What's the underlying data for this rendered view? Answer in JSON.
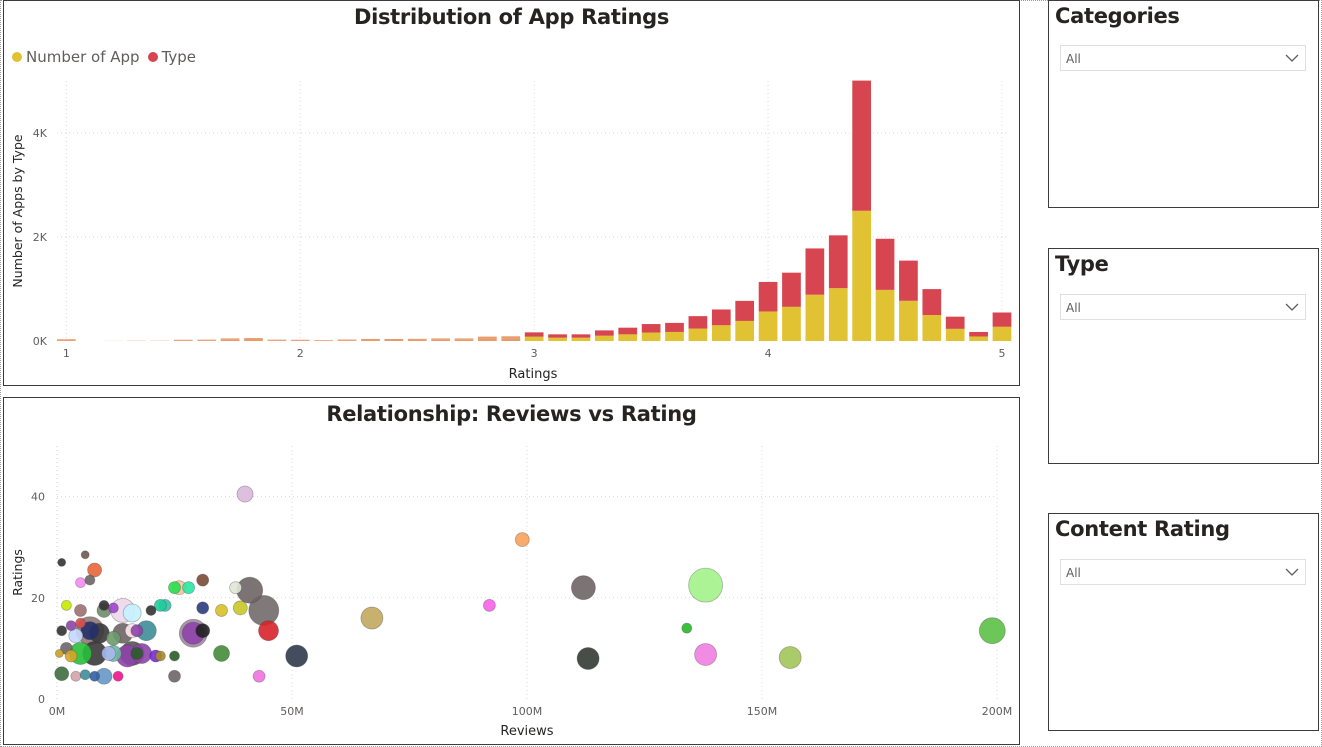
{
  "bar_panel": {
    "title": "Distribution of App Ratings",
    "legend": [
      {
        "label": "Number of App",
        "color": "#e0c232"
      },
      {
        "label": "Type",
        "color": "#d64550"
      }
    ]
  },
  "scatter_panel": {
    "title": "Relationship: Reviews vs Rating"
  },
  "slicers": [
    {
      "title": "Categories",
      "value": "All",
      "icon": "chevron-down-icon"
    },
    {
      "title": "Type",
      "value": "All",
      "icon": "chevron-down-icon"
    },
    {
      "title": "Content Rating",
      "value": "All",
      "icon": "chevron-down-icon"
    }
  ],
  "chart_data": [
    {
      "type": "bar",
      "stacked": true,
      "title": "Distribution of App Ratings",
      "xlabel": "Ratings",
      "ylabel": "Number of Apps by Type",
      "x": [
        1.0,
        1.2,
        1.3,
        1.4,
        1.5,
        1.6,
        1.7,
        1.8,
        1.9,
        2.0,
        2.1,
        2.2,
        2.3,
        2.4,
        2.5,
        2.6,
        2.7,
        2.8,
        2.9,
        3.0,
        3.1,
        3.2,
        3.3,
        3.4,
        3.5,
        3.6,
        3.7,
        3.8,
        3.9,
        4.0,
        4.1,
        4.2,
        4.3,
        4.4,
        4.5,
        4.6,
        4.7,
        4.8,
        4.9,
        5.0
      ],
      "series": [
        {
          "name": "Number of App",
          "color": "#e0c232",
          "values": [
            17,
            1,
            3,
            3,
            12,
            13,
            25,
            28,
            13,
            12,
            8,
            14,
            20,
            19,
            21,
            25,
            25,
            42,
            45,
            83,
            64,
            64,
            102,
            128,
            163,
            174,
            239,
            303,
            386,
            568,
            657,
            890,
            1016,
            2504,
            983,
            773,
            499,
            234,
            87,
            274
          ]
        },
        {
          "name": "Type",
          "color": "#d64550",
          "values": [
            17,
            1,
            3,
            3,
            12,
            13,
            25,
            28,
            13,
            12,
            8,
            14,
            20,
            19,
            21,
            25,
            25,
            42,
            45,
            83,
            64,
            64,
            102,
            128,
            163,
            174,
            239,
            303,
            386,
            568,
            657,
            890,
            1016,
            2504,
            983,
            773,
            499,
            234,
            87,
            274
          ]
        }
      ],
      "xlim": [
        0.96,
        5.03
      ],
      "xticks": [
        "1",
        "2",
        "3",
        "4",
        "5"
      ],
      "ylim": [
        0,
        5000
      ],
      "yticks": [
        "0K",
        "2K",
        "4K"
      ],
      "grid": true,
      "legend_position": "top-left"
    },
    {
      "type": "scatter",
      "title": "Relationship: Reviews vs Rating",
      "xlabel": "Reviews",
      "ylabel": "Ratings",
      "xlim": [
        0,
        200
      ],
      "ylim": [
        0,
        50
      ],
      "xticks": [
        "0M",
        "50M",
        "100M",
        "150M",
        "200M"
      ],
      "yticks": [
        "0",
        "20",
        "40"
      ],
      "grid": true,
      "points": [
        {
          "x": 40,
          "y": 40.5,
          "r": 8,
          "color": "#dcb8dc"
        },
        {
          "x": 99,
          "y": 31.5,
          "r": 7,
          "color": "#f7a25c"
        },
        {
          "x": 112,
          "y": 22,
          "r": 12,
          "color": "#6e6466"
        },
        {
          "x": 138,
          "y": 22.5,
          "r": 17,
          "color": "#a3f28a"
        },
        {
          "x": 92,
          "y": 18.5,
          "r": 6,
          "color": "#f760e8"
        },
        {
          "x": 67,
          "y": 16,
          "r": 11,
          "color": "#c2a85e"
        },
        {
          "x": 134,
          "y": 14,
          "r": 5,
          "color": "#28b828"
        },
        {
          "x": 199,
          "y": 13.5,
          "r": 13,
          "color": "#5cc046"
        },
        {
          "x": 113,
          "y": 8,
          "r": 11,
          "color": "#333a33"
        },
        {
          "x": 138,
          "y": 8.8,
          "r": 11,
          "color": "#f07ee0"
        },
        {
          "x": 156,
          "y": 8.2,
          "r": 11,
          "color": "#a2c45a"
        },
        {
          "x": 51,
          "y": 8.5,
          "r": 11,
          "color": "#2f3a4c"
        },
        {
          "x": 45,
          "y": 13.5,
          "r": 10,
          "color": "#d7242a"
        },
        {
          "x": 35,
          "y": 9,
          "r": 8,
          "color": "#418c3a"
        },
        {
          "x": 43,
          "y": 4.5,
          "r": 6,
          "color": "#f072e0"
        },
        {
          "x": 44,
          "y": 17.5,
          "r": 15,
          "color": "#716a6a"
        },
        {
          "x": 41,
          "y": 21.5,
          "r": 13,
          "color": "#6e6466"
        },
        {
          "x": 39,
          "y": 18,
          "r": 7,
          "color": "#c7c728"
        },
        {
          "x": 38,
          "y": 22,
          "r": 6,
          "color": "#e0e8d8"
        },
        {
          "x": 35,
          "y": 17.5,
          "r": 6,
          "color": "#d7c028"
        },
        {
          "x": 31,
          "y": 23.5,
          "r": 6,
          "color": "#7a4a36"
        },
        {
          "x": 31,
          "y": 13.5,
          "r": 7,
          "color": "#222222"
        },
        {
          "x": 29,
          "y": 13,
          "r": 14,
          "color": "#a088a0"
        },
        {
          "x": 29,
          "y": 13,
          "r": 11,
          "color": "#8e42aa"
        },
        {
          "x": 31,
          "y": 18,
          "r": 6,
          "color": "#2a3c80"
        },
        {
          "x": 28,
          "y": 22,
          "r": 6,
          "color": "#28e8a0"
        },
        {
          "x": 26,
          "y": 22,
          "r": 7,
          "color": "#eec8a0"
        },
        {
          "x": 25,
          "y": 22,
          "r": 6,
          "color": "#28e04e"
        },
        {
          "x": 25,
          "y": 4.5,
          "r": 6,
          "color": "#6e6466"
        },
        {
          "x": 25,
          "y": 8.5,
          "r": 5,
          "color": "#2a5c2a"
        },
        {
          "x": 23,
          "y": 18.5,
          "r": 6,
          "color": "#3ac0a8"
        },
        {
          "x": 22,
          "y": 18.5,
          "r": 6,
          "color": "#1ecc9a"
        },
        {
          "x": 20,
          "y": 17.5,
          "r": 5,
          "color": "#333333"
        },
        {
          "x": 22,
          "y": 8.5,
          "r": 5,
          "color": "#a78b28"
        },
        {
          "x": 21,
          "y": 8.5,
          "r": 6,
          "color": "#7828d8"
        },
        {
          "x": 19,
          "y": 13.5,
          "r": 10,
          "color": "#3e8e98"
        },
        {
          "x": 16,
          "y": 13.5,
          "r": 7,
          "color": "#ffe8ea"
        },
        {
          "x": 16,
          "y": 17,
          "r": 9,
          "color": "#c4f2ff"
        },
        {
          "x": 16,
          "y": 9,
          "r": 12,
          "color": "#545454"
        },
        {
          "x": 14,
          "y": 13,
          "r": 10,
          "color": "#6e6466"
        },
        {
          "x": 14,
          "y": 17.5,
          "r": 12,
          "color": "#ecd8ec"
        },
        {
          "x": 15,
          "y": 8.5,
          "r": 11,
          "color": "#8e42aa"
        },
        {
          "x": 13,
          "y": 4.5,
          "r": 5,
          "color": "#f0148c"
        },
        {
          "x": 12,
          "y": 12,
          "r": 7,
          "color": "#6d9a6d"
        },
        {
          "x": 11,
          "y": 9,
          "r": 7,
          "color": "#a8b8ee"
        },
        {
          "x": 10,
          "y": 17.5,
          "r": 7,
          "color": "#6e8c6e"
        },
        {
          "x": 10,
          "y": 18.5,
          "r": 5,
          "color": "#333333"
        },
        {
          "x": 12,
          "y": 18,
          "r": 5,
          "color": "#9e42cc"
        },
        {
          "x": 10,
          "y": 4.5,
          "r": 8,
          "color": "#6698c8"
        },
        {
          "x": 8,
          "y": 4.5,
          "r": 5,
          "color": "#3260a0"
        },
        {
          "x": 8,
          "y": 9,
          "r": 12,
          "color": "#3a3a3a"
        },
        {
          "x": 7,
          "y": 13.5,
          "r": 9,
          "color": "#26306a"
        },
        {
          "x": 7,
          "y": 13.5,
          "r": 14,
          "color": "#917878"
        },
        {
          "x": 5,
          "y": 9,
          "r": 11,
          "color": "#28c038"
        },
        {
          "x": 4,
          "y": 12.5,
          "r": 7,
          "color": "#c4d8ff"
        },
        {
          "x": 5,
          "y": 17.5,
          "r": 6,
          "color": "#9c7070"
        },
        {
          "x": 5,
          "y": 15,
          "r": 5,
          "color": "#d14e4e"
        },
        {
          "x": 4,
          "y": 4.5,
          "r": 5,
          "color": "#d4a3a8"
        },
        {
          "x": 5,
          "y": 23,
          "r": 5,
          "color": "#f48cf0"
        },
        {
          "x": 8,
          "y": 25.5,
          "r": 7,
          "color": "#e8663a"
        },
        {
          "x": 7,
          "y": 23.5,
          "r": 5,
          "color": "#6e6466"
        },
        {
          "x": 6,
          "y": 28.5,
          "r": 4,
          "color": "#6e5a50"
        },
        {
          "x": 1,
          "y": 27,
          "r": 4,
          "color": "#333333"
        },
        {
          "x": 2,
          "y": 18.5,
          "r": 5,
          "color": "#c8e800"
        },
        {
          "x": 1,
          "y": 13.5,
          "r": 5,
          "color": "#333333"
        },
        {
          "x": 2,
          "y": 10,
          "r": 6,
          "color": "#6e6466"
        },
        {
          "x": 1,
          "y": 5,
          "r": 7,
          "color": "#3e6e3e"
        },
        {
          "x": 0.5,
          "y": 9,
          "r": 4,
          "color": "#c8a028"
        },
        {
          "x": 3,
          "y": 14.5,
          "r": 5,
          "color": "#8e42aa"
        },
        {
          "x": 3,
          "y": 8.5,
          "r": 6,
          "color": "#d4a528"
        },
        {
          "x": 6,
          "y": 4.8,
          "r": 5,
          "color": "#3e8e98"
        },
        {
          "x": 9,
          "y": 13,
          "r": 10,
          "color": "#3a3a3a"
        },
        {
          "x": 12,
          "y": 9,
          "r": 8,
          "color": "#6eb8a0"
        },
        {
          "x": 18,
          "y": 9,
          "r": 10,
          "color": "#8e42aa"
        },
        {
          "x": 17,
          "y": 13.5,
          "r": 6,
          "color": "#8e42aa"
        },
        {
          "x": 17,
          "y": 9,
          "r": 6,
          "color": "#2a5c2a"
        }
      ]
    }
  ]
}
